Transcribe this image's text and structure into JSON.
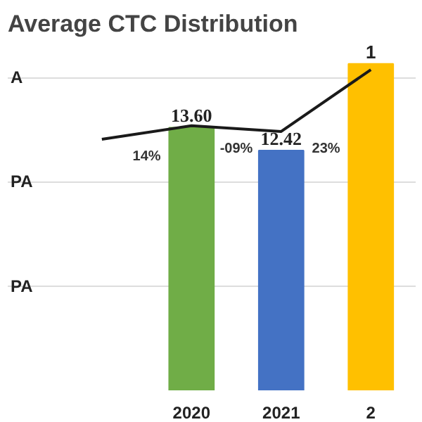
{
  "chart_data": {
    "type": "bar",
    "title": "Average CTC Distribution",
    "categories": [
      null,
      "2020",
      "2021",
      "2"
    ],
    "series": [
      {
        "colors": [
          "#70ad47",
          "#70ad47",
          "#4472c4",
          "#ffc000"
        ],
        "values": [
          null,
          13.6,
          12.42,
          16.9
        ],
        "value_labels": [
          null,
          "13.60",
          "12.42",
          null
        ]
      },
      {
        "type": "line",
        "color": "#1a1a1a",
        "values": [
          13.0,
          13.7,
          13.4,
          16.6
        ]
      }
    ],
    "yticks": [
      {
        "value": 5.4,
        "label": null
      },
      {
        "value": 10.8,
        "label": null
      },
      {
        "value": 16.2,
        "label": null
      }
    ],
    "grid": "y",
    "annotations": [
      "14%",
      "-09%",
      "23%",
      "A",
      "PA",
      "PA",
      {
        "text": "1",
        "x": "2",
        "y": 16.9
      }
    ]
  }
}
